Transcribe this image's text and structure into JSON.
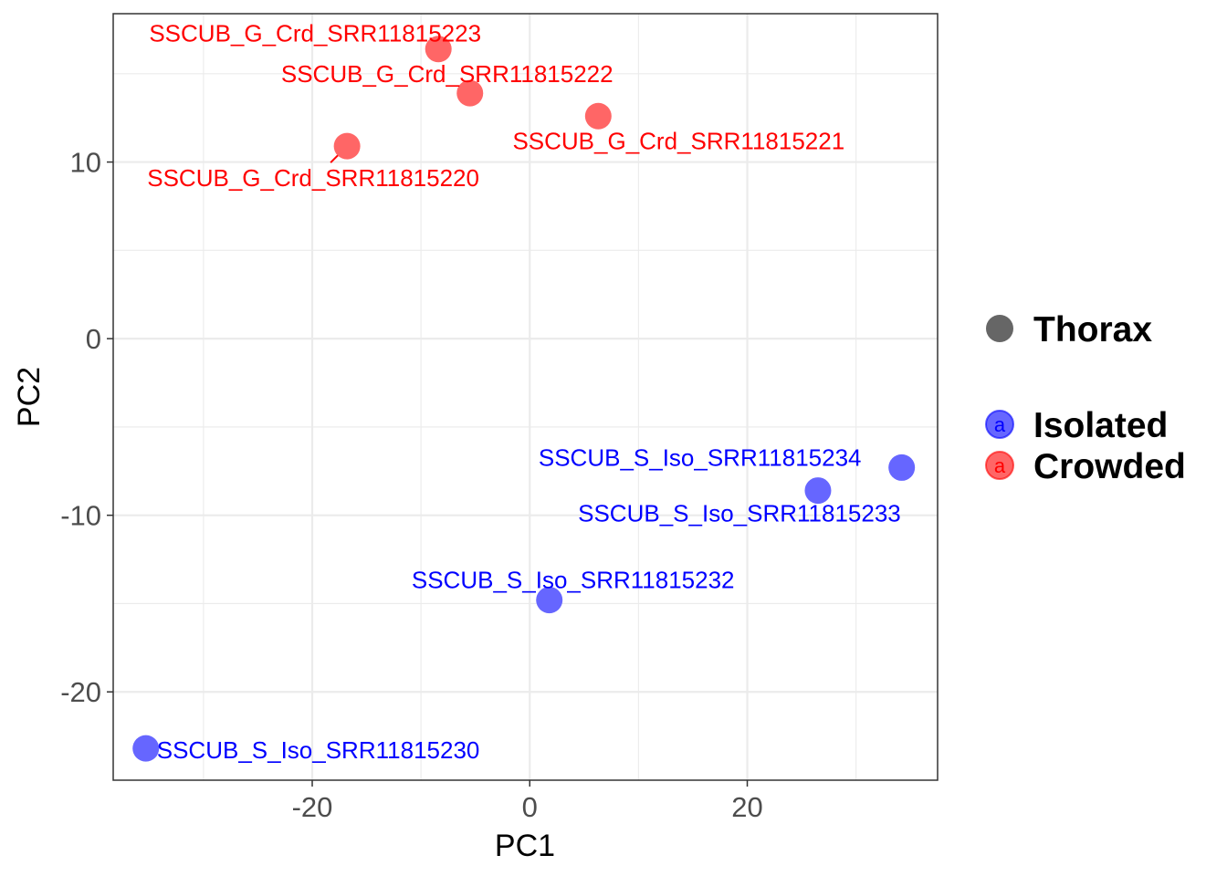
{
  "chart_data": {
    "type": "scatter",
    "xlabel": "PC1",
    "ylabel": "PC2",
    "xlim": [
      -38.3,
      37.5
    ],
    "ylim": [
      -25,
      18.4
    ],
    "x_ticks": [
      -20,
      0,
      20
    ],
    "y_ticks": [
      10,
      0,
      -10,
      -20
    ],
    "grid": true,
    "legend_placement": "right",
    "shape_legend": {
      "label": "Thorax",
      "color": "#666666"
    },
    "series": [
      {
        "name": "Isolated",
        "color": "#0000ff",
        "point_color": "#6666ff",
        "points": [
          {
            "x": -35.3,
            "y": -23.2,
            "label": "SSCUB_S_Iso_SRR11815230"
          },
          {
            "x": 1.8,
            "y": -14.8,
            "label": "SSCUB_S_Iso_SRR11815232"
          },
          {
            "x": 26.5,
            "y": -8.6,
            "label": "SSCUB_S_Iso_SRR11815233"
          },
          {
            "x": 34.2,
            "y": -7.3,
            "label": "SSCUB_S_Iso_SRR11815234"
          }
        ]
      },
      {
        "name": "Crowded",
        "color": "#ff0000",
        "point_color": "#ff6666",
        "points": [
          {
            "x": -16.8,
            "y": 10.9,
            "label": "SSCUB_G_Crd_SRR11815220"
          },
          {
            "x": 6.3,
            "y": 12.6,
            "label": "SSCUB_G_Crd_SRR11815221"
          },
          {
            "x": -5.5,
            "y": 13.9,
            "label": "SSCUB_G_Crd_SRR11815222"
          },
          {
            "x": -8.4,
            "y": 16.4,
            "label": "SSCUB_G_Crd_SRR11815223"
          }
        ]
      }
    ]
  },
  "legend": {
    "key_glyph": "a"
  }
}
